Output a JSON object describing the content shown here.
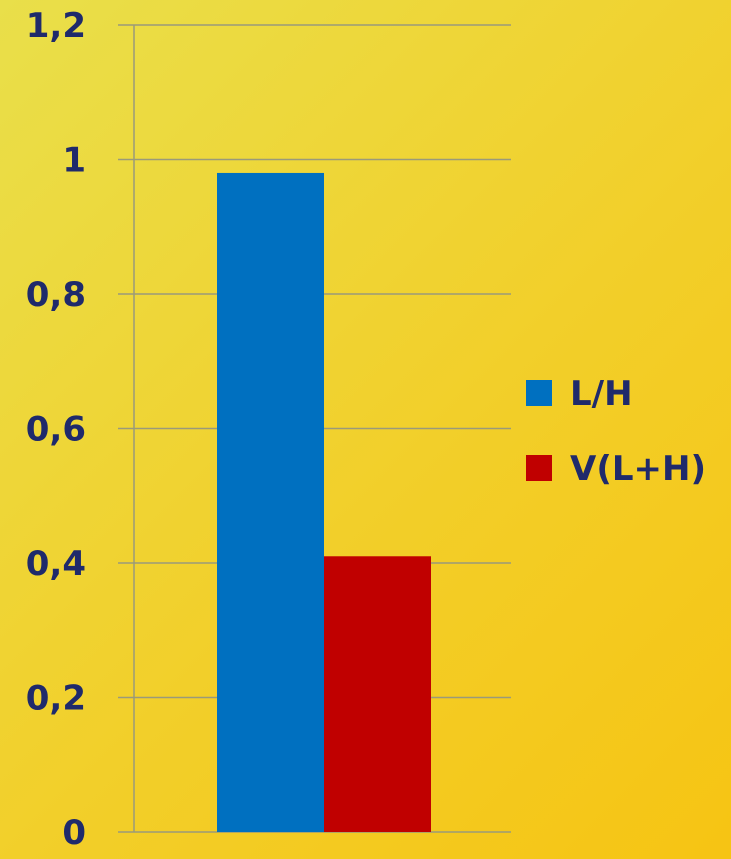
{
  "chart_data": {
    "type": "bar",
    "categories": [
      ""
    ],
    "series": [
      {
        "name": "L/H",
        "values": [
          0.98
        ],
        "color": "#0070c0"
      },
      {
        "name": "V(L+H)",
        "values": [
          0.41
        ],
        "color": "#c00000"
      }
    ],
    "title": "",
    "xlabel": "",
    "ylabel": "",
    "ylim": [
      0,
      1.2
    ],
    "yticks": [
      "0",
      "0,2",
      "0,4",
      "0,6",
      "0,8",
      "1",
      "1,2"
    ],
    "grid": true,
    "legend_position": "right"
  },
  "colors": {
    "axis_text": "#1f2a6b",
    "gridline": "#9a9a7a"
  }
}
